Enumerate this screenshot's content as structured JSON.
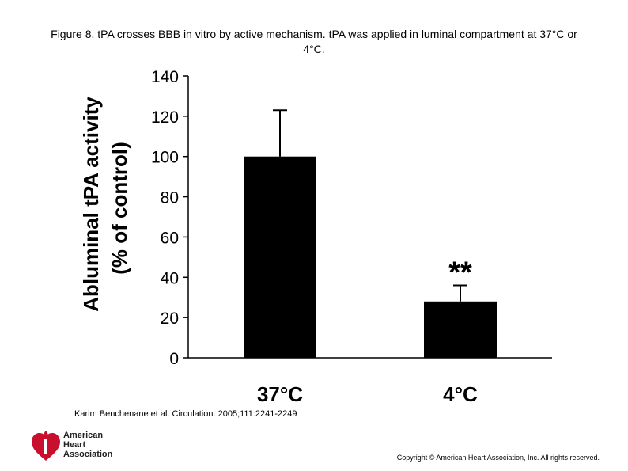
{
  "caption": "Figure 8. t​PA crosses BBB in vitro by active mechanism. t​PA was applied in luminal compartment at 37°C or 4°C.",
  "citation": "Karim Benchenane et al. Circulation. 2005;111:2241-2249",
  "copyright": "Copyright © American Heart Association, Inc. All rights reserved.",
  "logo": {
    "line1": "American",
    "line2": "Heart",
    "line3": "Association",
    "icon": "heart-torch-icon",
    "color": "#c8102e"
  },
  "chart_data": {
    "type": "bar",
    "categories": [
      "37°C",
      "4°C"
    ],
    "values": [
      100,
      28
    ],
    "errors": [
      23,
      8
    ],
    "annotations": [
      "",
      "**"
    ],
    "ylabel": "Abluminal tPA activity",
    "ylabel2": "(% of control)",
    "ylim": [
      0,
      140
    ],
    "yticks": [
      0,
      20,
      40,
      60,
      80,
      100,
      120,
      140
    ],
    "bar_color": "#000000",
    "grid": false
  }
}
